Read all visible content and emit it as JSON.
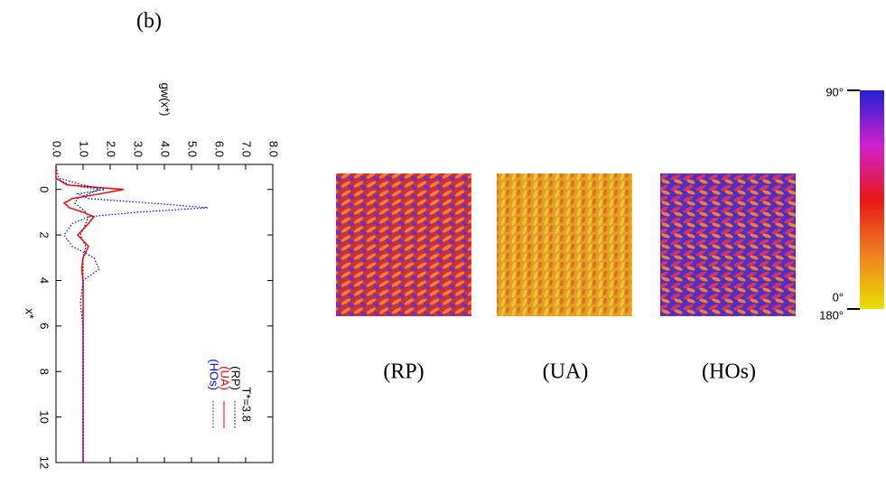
{
  "panel_label": "(b)",
  "snapshots": [
    "(RP)",
    "(UA)",
    "(HOs)"
  ],
  "colorbar": {
    "top_label": "90°",
    "bottom_labels": [
      "0°",
      "180°"
    ]
  },
  "chart_data": {
    "type": "line",
    "x_label": "x*",
    "y_label": "gw(x*)",
    "legend_title": "T*=3.8",
    "x": [
      -1,
      -0.5,
      -0.2,
      0,
      0.2,
      0.4,
      0.6,
      0.8,
      1,
      1.2,
      1.5,
      2,
      2.5,
      3,
      3.5,
      4,
      5,
      6,
      8,
      10,
      12
    ],
    "series": [
      {
        "name": "(RP)",
        "color": "#000000",
        "dash": true,
        "values": [
          0,
          0,
          0.5,
          1.6,
          1.2,
          0.8,
          0.7,
          0.9,
          1.1,
          1.2,
          1.1,
          0.9,
          1.1,
          1.0,
          1.0,
          1.0,
          1.0,
          1.0,
          1.0,
          1.0,
          1.0
        ]
      },
      {
        "name": "(UA)",
        "color": "#ff0000",
        "dash": false,
        "values": [
          0,
          0,
          0.4,
          2.5,
          1.6,
          0.6,
          0.3,
          0.5,
          1.0,
          1.4,
          1.2,
          0.8,
          1.2,
          1.0,
          0.95,
          1.0,
          1.0,
          1.0,
          1.0,
          1.0,
          1.0
        ]
      },
      {
        "name": "(HOs)",
        "color": "#0000ff",
        "dash": true,
        "values": [
          0,
          0.1,
          1.0,
          1.8,
          0.8,
          1.2,
          3.5,
          5.6,
          3.0,
          1.2,
          0.6,
          0.3,
          0.6,
          1.4,
          1.6,
          1.0,
          0.9,
          1.0,
          1.0,
          1.0,
          1.0
        ]
      }
    ],
    "xlim": [
      -1.1,
      12
    ],
    "xticks": [
      0,
      2,
      4,
      6,
      8,
      10,
      12
    ],
    "ylim": [
      0,
      8
    ],
    "yticks": [
      {
        "value": 0,
        "label": "0.0"
      },
      {
        "value": 1,
        "label": "1.0"
      },
      {
        "value": 2,
        "label": "2.0"
      },
      {
        "value": 3,
        "label": "3.0"
      },
      {
        "value": 4,
        "label": "4.0"
      },
      {
        "value": 5,
        "label": "5.0"
      },
      {
        "value": 6,
        "label": "6.0"
      },
      {
        "value": 7,
        "label": "7.0"
      },
      {
        "value": 8,
        "label": "8.0"
      }
    ]
  }
}
